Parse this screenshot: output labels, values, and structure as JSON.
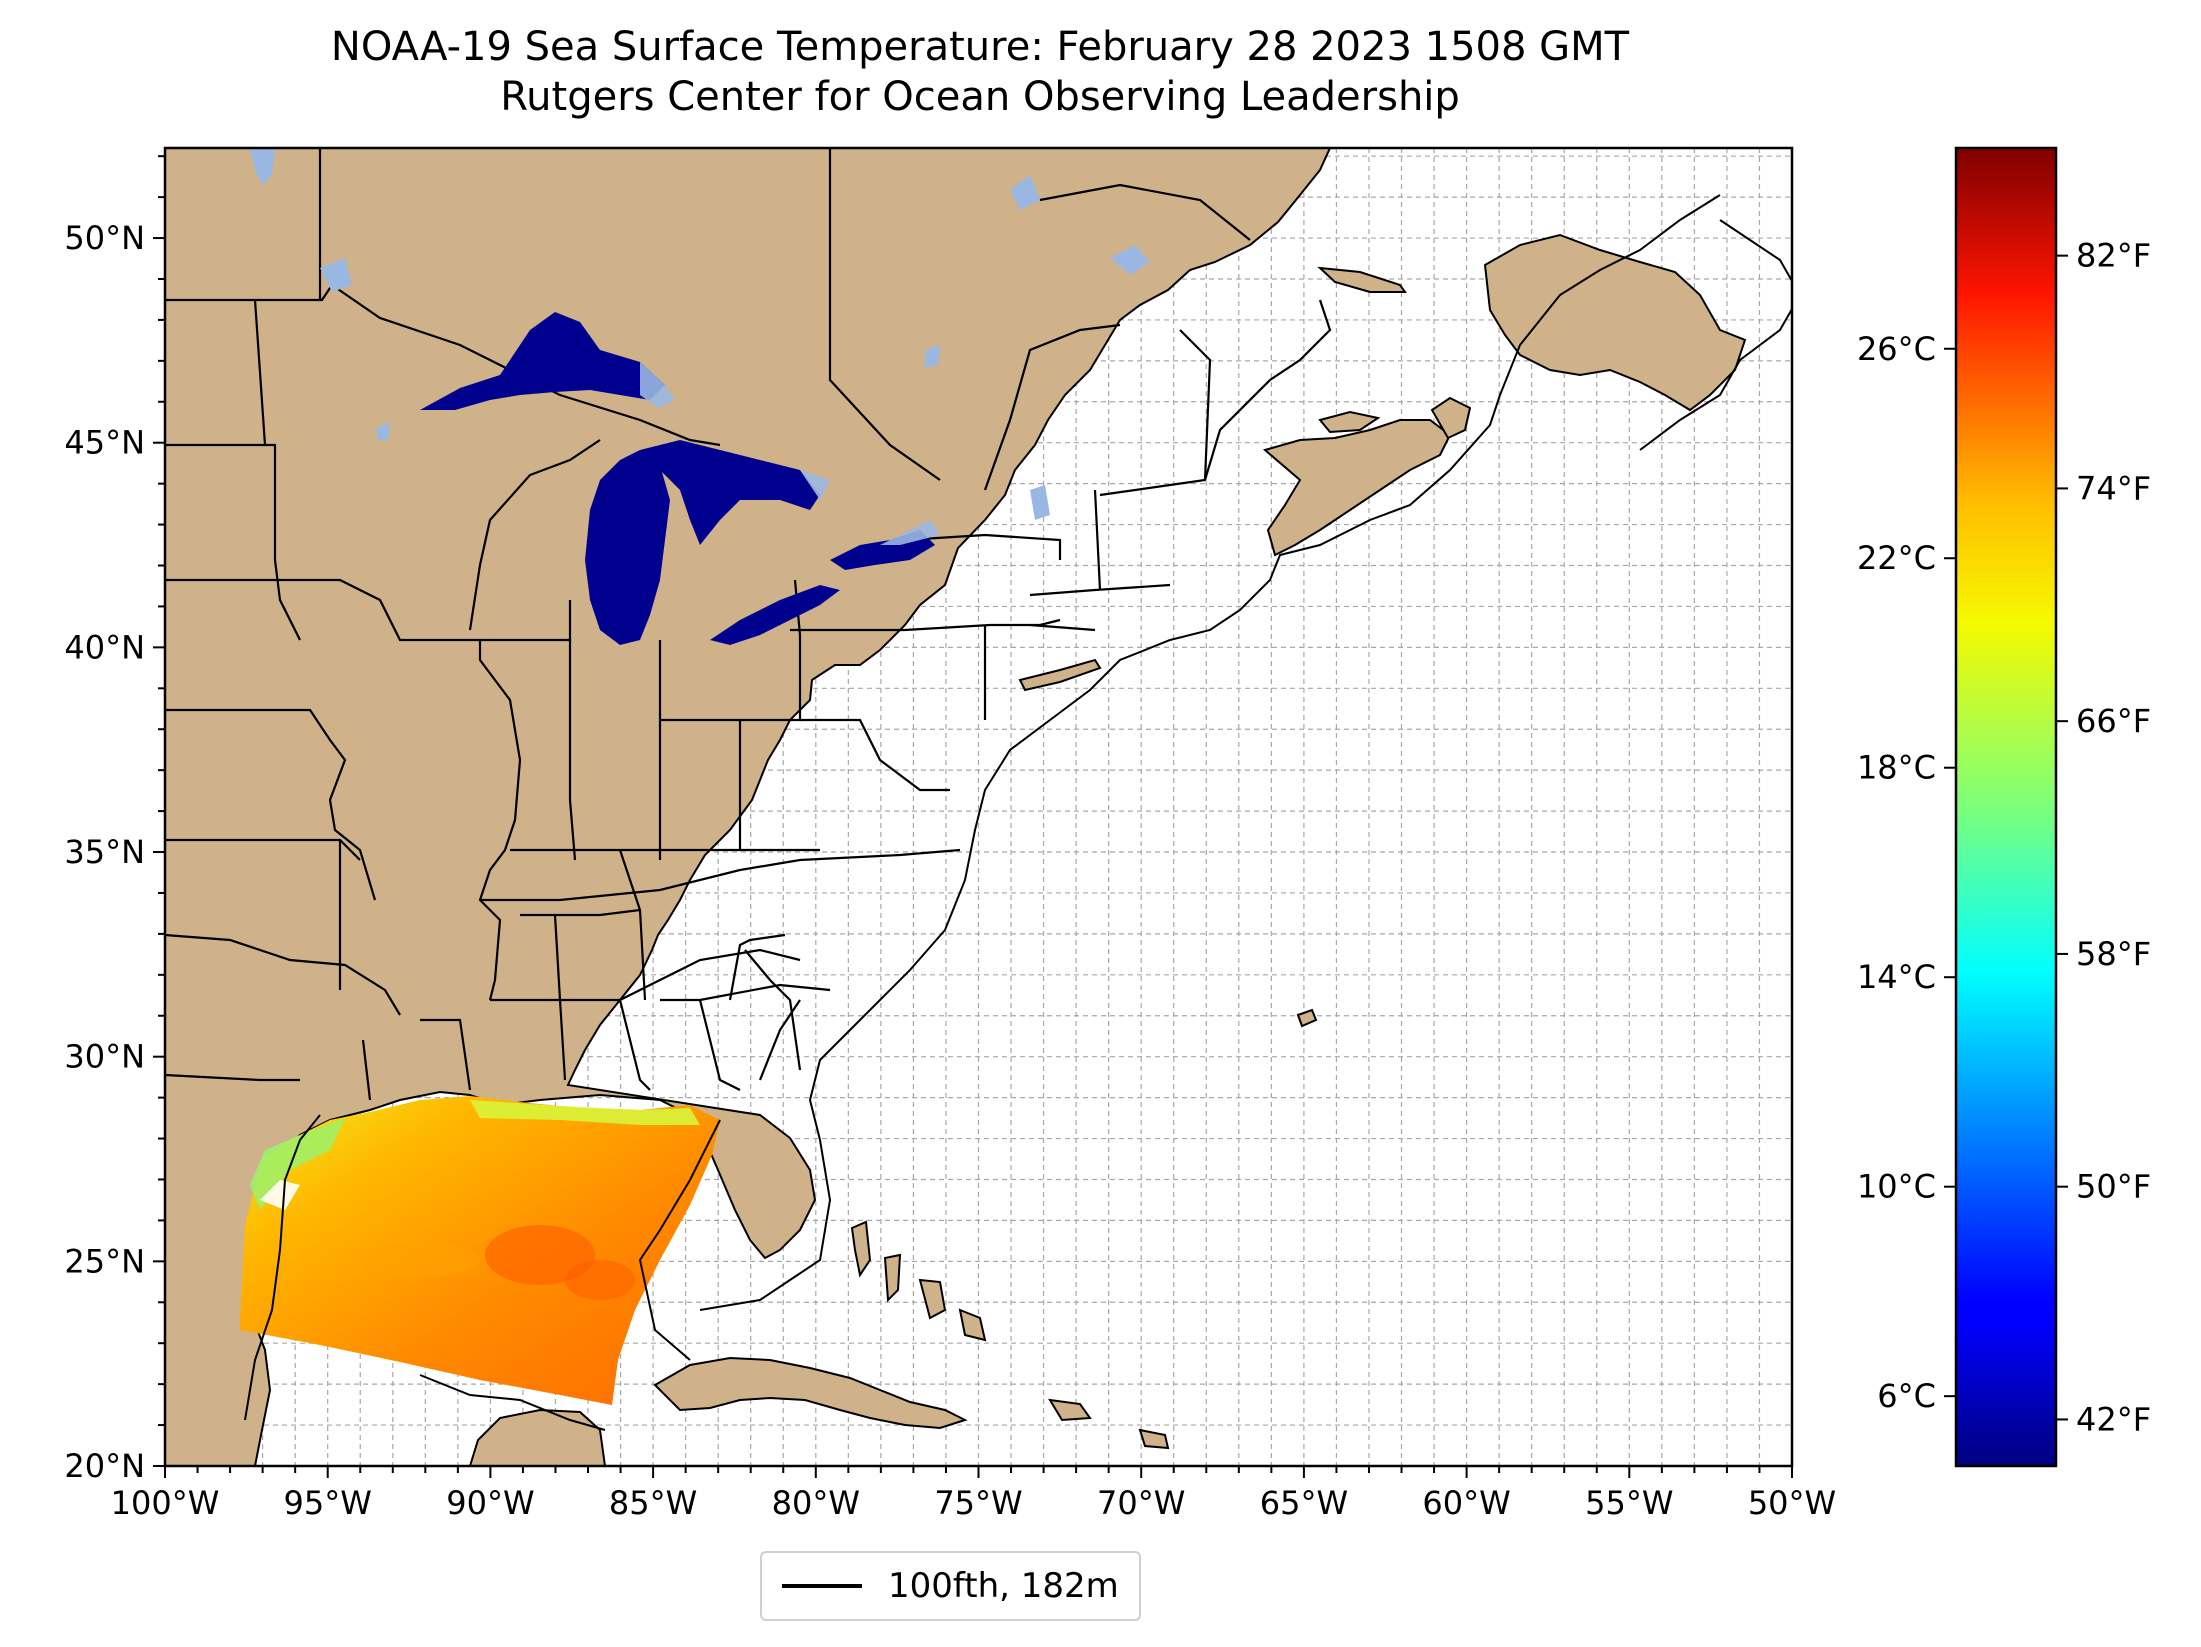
{
  "figure": {
    "title": "NOAA-19 Sea Surface Temperature: February 28 2023 1508 GMT",
    "subtitle": "Rutgers Center for Ocean Observing Leadership"
  },
  "map": {
    "lon_range": [
      -100,
      -50
    ],
    "lat_range": [
      20,
      52.2
    ],
    "gridlines": true,
    "x_tick_labels": [
      {
        "lon": -100,
        "label": "100°W"
      },
      {
        "lon": -95,
        "label": "95°W"
      },
      {
        "lon": -90,
        "label": "90°W"
      },
      {
        "lon": -85,
        "label": "85°W"
      },
      {
        "lon": -80,
        "label": "80°W"
      },
      {
        "lon": -75,
        "label": "75°W"
      },
      {
        "lon": -70,
        "label": "70°W"
      },
      {
        "lon": -65,
        "label": "65°W"
      },
      {
        "lon": -60,
        "label": "60°W"
      },
      {
        "lon": -55,
        "label": "55°W"
      },
      {
        "lon": -50,
        "label": "50°W"
      }
    ],
    "y_tick_labels": [
      {
        "lat": 20,
        "label": "20°N"
      },
      {
        "lat": 25,
        "label": "25°N"
      },
      {
        "lat": 30,
        "label": "30°N"
      },
      {
        "lat": 35,
        "label": "35°N"
      },
      {
        "lat": 40,
        "label": "40°N"
      },
      {
        "lat": 45,
        "label": "45°N"
      },
      {
        "lat": 50,
        "label": "50°N"
      }
    ],
    "colors": {
      "land": "#cfb28a",
      "ocean": "#ffffff",
      "great_lakes_sst": "#00008f",
      "inland_water": "#9ab7e2",
      "coast": "#000000"
    },
    "sst_swath_region": "Gulf of Mexico",
    "legend": {
      "label": "100fth, 182m"
    }
  },
  "colorbar": {
    "colormap": "jet",
    "celsius_ticks": [
      {
        "value": 6,
        "label": "6°C"
      },
      {
        "value": 10,
        "label": "10°C"
      },
      {
        "value": 14,
        "label": "14°C"
      },
      {
        "value": 18,
        "label": "18°C"
      },
      {
        "value": 22,
        "label": "22°C"
      },
      {
        "value": 26,
        "label": "26°C"
      }
    ],
    "fahrenheit_ticks": [
      {
        "value": 42,
        "label": "42°F"
      },
      {
        "value": 50,
        "label": "50°F"
      },
      {
        "value": 58,
        "label": "58°F"
      },
      {
        "value": 66,
        "label": "66°F"
      },
      {
        "value": 74,
        "label": "74°F"
      },
      {
        "value": 82,
        "label": "82°F"
      }
    ],
    "range_f": [
      40.4,
      85.7
    ]
  }
}
